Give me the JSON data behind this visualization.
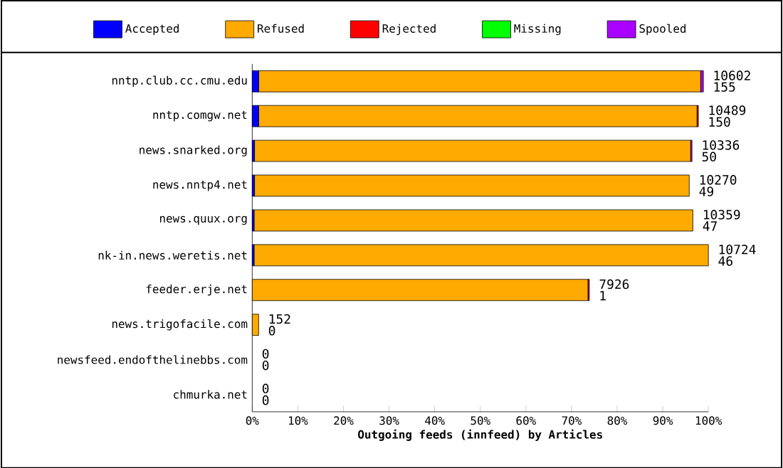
{
  "chart_data": {
    "type": "bar",
    "orientation": "horizontal",
    "stacked": true,
    "xlabel": "Outgoing feeds (innfeed) by Articles",
    "categories": [
      "nntp.club.cc.cmu.edu",
      "nntp.comgw.net",
      "news.snarked.org",
      "news.nntp4.net",
      "news.quux.org",
      "nk-in.news.weretis.net",
      "feeder.erje.net",
      "news.trigofacile.com",
      "newsfeed.endofthelinebbs.com",
      "chmurka.net"
    ],
    "series": [
      {
        "name": "Accepted",
        "color": "#0000ff",
        "values": [
          1.4,
          1.4,
          0.5,
          0.5,
          0.4,
          0.4,
          0,
          0,
          0,
          0
        ]
      },
      {
        "name": "Refused",
        "color": "#ffaa00",
        "values": [
          96.9,
          96.1,
          95.6,
          95.3,
          96.2,
          99.6,
          73.6,
          1.4,
          0,
          0
        ]
      },
      {
        "name": "Rejected",
        "color": "#ff0000",
        "values": [
          0,
          0.3,
          0,
          0,
          0,
          0,
          0.3,
          0,
          0,
          0
        ]
      },
      {
        "name": "Missing",
        "color": "#00ff00",
        "values": [
          0,
          0,
          0,
          0,
          0,
          0,
          0,
          0,
          0,
          0
        ]
      },
      {
        "name": "Spooled",
        "color": "#aa00ff",
        "values": [
          0.6,
          0,
          0.3,
          0,
          0,
          0,
          0,
          0,
          0,
          0
        ]
      }
    ],
    "annotations": [
      {
        "text": "10602",
        "x": 98.9,
        "y": "nntp.club.cc.cmu.edu"
      },
      {
        "text": "155",
        "x": 98.9,
        "y": "nntp.club.cc.cmu.edu"
      },
      {
        "text": "10489",
        "x": 97.8,
        "y": "nntp.comgw.net"
      },
      {
        "text": "150",
        "x": 97.8,
        "y": "nntp.comgw.net"
      },
      {
        "text": "10336",
        "x": 96.4,
        "y": "news.snarked.org"
      },
      {
        "text": "50",
        "x": 96.4,
        "y": "news.snarked.org"
      },
      {
        "text": "10270",
        "x": 95.8,
        "y": "news.nntp4.net"
      },
      {
        "text": "49",
        "x": 95.8,
        "y": "news.nntp4.net"
      },
      {
        "text": "10359",
        "x": 96.6,
        "y": "news.quux.org"
      },
      {
        "text": "47",
        "x": 96.6,
        "y": "news.quux.org"
      },
      {
        "text": "10724",
        "x": 100,
        "y": "nk-in.news.weretis.net"
      },
      {
        "text": "46",
        "x": 100,
        "y": "nk-in.news.weretis.net"
      },
      {
        "text": "7926",
        "x": 73.9,
        "y": "feeder.erje.net"
      },
      {
        "text": "1",
        "x": 73.9,
        "y": "feeder.erje.net"
      },
      {
        "text": "152",
        "x": 1.4,
        "y": "news.trigofacile.com"
      },
      {
        "text": "0",
        "x": 1.4,
        "y": "news.trigofacile.com"
      },
      {
        "text": "0",
        "x": 0,
        "y": "newsfeed.endofthelinebbs.com"
      },
      {
        "text": "0",
        "x": 0,
        "y": "newsfeed.endofthelinebbs.com"
      },
      {
        "text": "0",
        "x": 0,
        "y": "chmurka.net"
      },
      {
        "text": "0",
        "x": 0,
        "y": "chmurka.net"
      }
    ],
    "xlim": [
      0,
      100
    ],
    "xticks": [
      {
        "value": 0,
        "label": "0%"
      },
      {
        "value": 10,
        "label": "10%"
      },
      {
        "value": 20,
        "label": "20%"
      },
      {
        "value": 30,
        "label": "30%"
      },
      {
        "value": 40,
        "label": "40%"
      },
      {
        "value": 50,
        "label": "50%"
      },
      {
        "value": 60,
        "label": "60%"
      },
      {
        "value": 70,
        "label": "70%"
      },
      {
        "value": 80,
        "label": "80%"
      },
      {
        "value": 90,
        "label": "90%"
      },
      {
        "value": 100,
        "label": "100%"
      }
    ],
    "legend": "top",
    "grid": false
  }
}
